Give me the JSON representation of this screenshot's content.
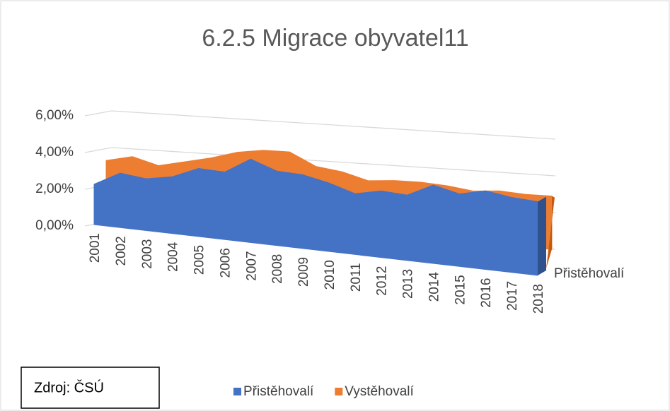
{
  "chart_data": {
    "type": "area3d",
    "title": "6.2.5 Migrace obyvatel11",
    "categories": [
      "2001",
      "2002",
      "2003",
      "2004",
      "2005",
      "2006",
      "2007",
      "2008",
      "2009",
      "2010",
      "2011",
      "2012",
      "2013",
      "2014",
      "2015",
      "2016",
      "2017",
      "2018"
    ],
    "series": [
      {
        "name": "Přistěhovalí",
        "color": "#4472c4",
        "values": [
          2.2,
          2.9,
          2.7,
          2.9,
          3.4,
          3.3,
          4.0,
          3.5,
          3.4,
          3.1,
          2.7,
          2.9,
          2.8,
          3.3,
          3.0,
          3.2,
          3.0,
          2.9
        ]
      },
      {
        "name": "Vystěhovalí",
        "color": "#ed7d31",
        "values": [
          3.3,
          3.6,
          3.2,
          3.5,
          3.8,
          4.2,
          4.4,
          4.4,
          3.7,
          3.5,
          3.1,
          3.2,
          3.2,
          3.1,
          2.9,
          3.0,
          2.9,
          2.9
        ]
      }
    ],
    "ylim": [
      0,
      6
    ],
    "yticks": [
      {
        "value": 0,
        "label": "0,00%"
      },
      {
        "value": 2,
        "label": "2,00%"
      },
      {
        "value": 4,
        "label": "4,00%"
      },
      {
        "value": 6,
        "label": "6,00%"
      }
    ],
    "grid": true,
    "source": "Zdroj: ČSÚ"
  }
}
